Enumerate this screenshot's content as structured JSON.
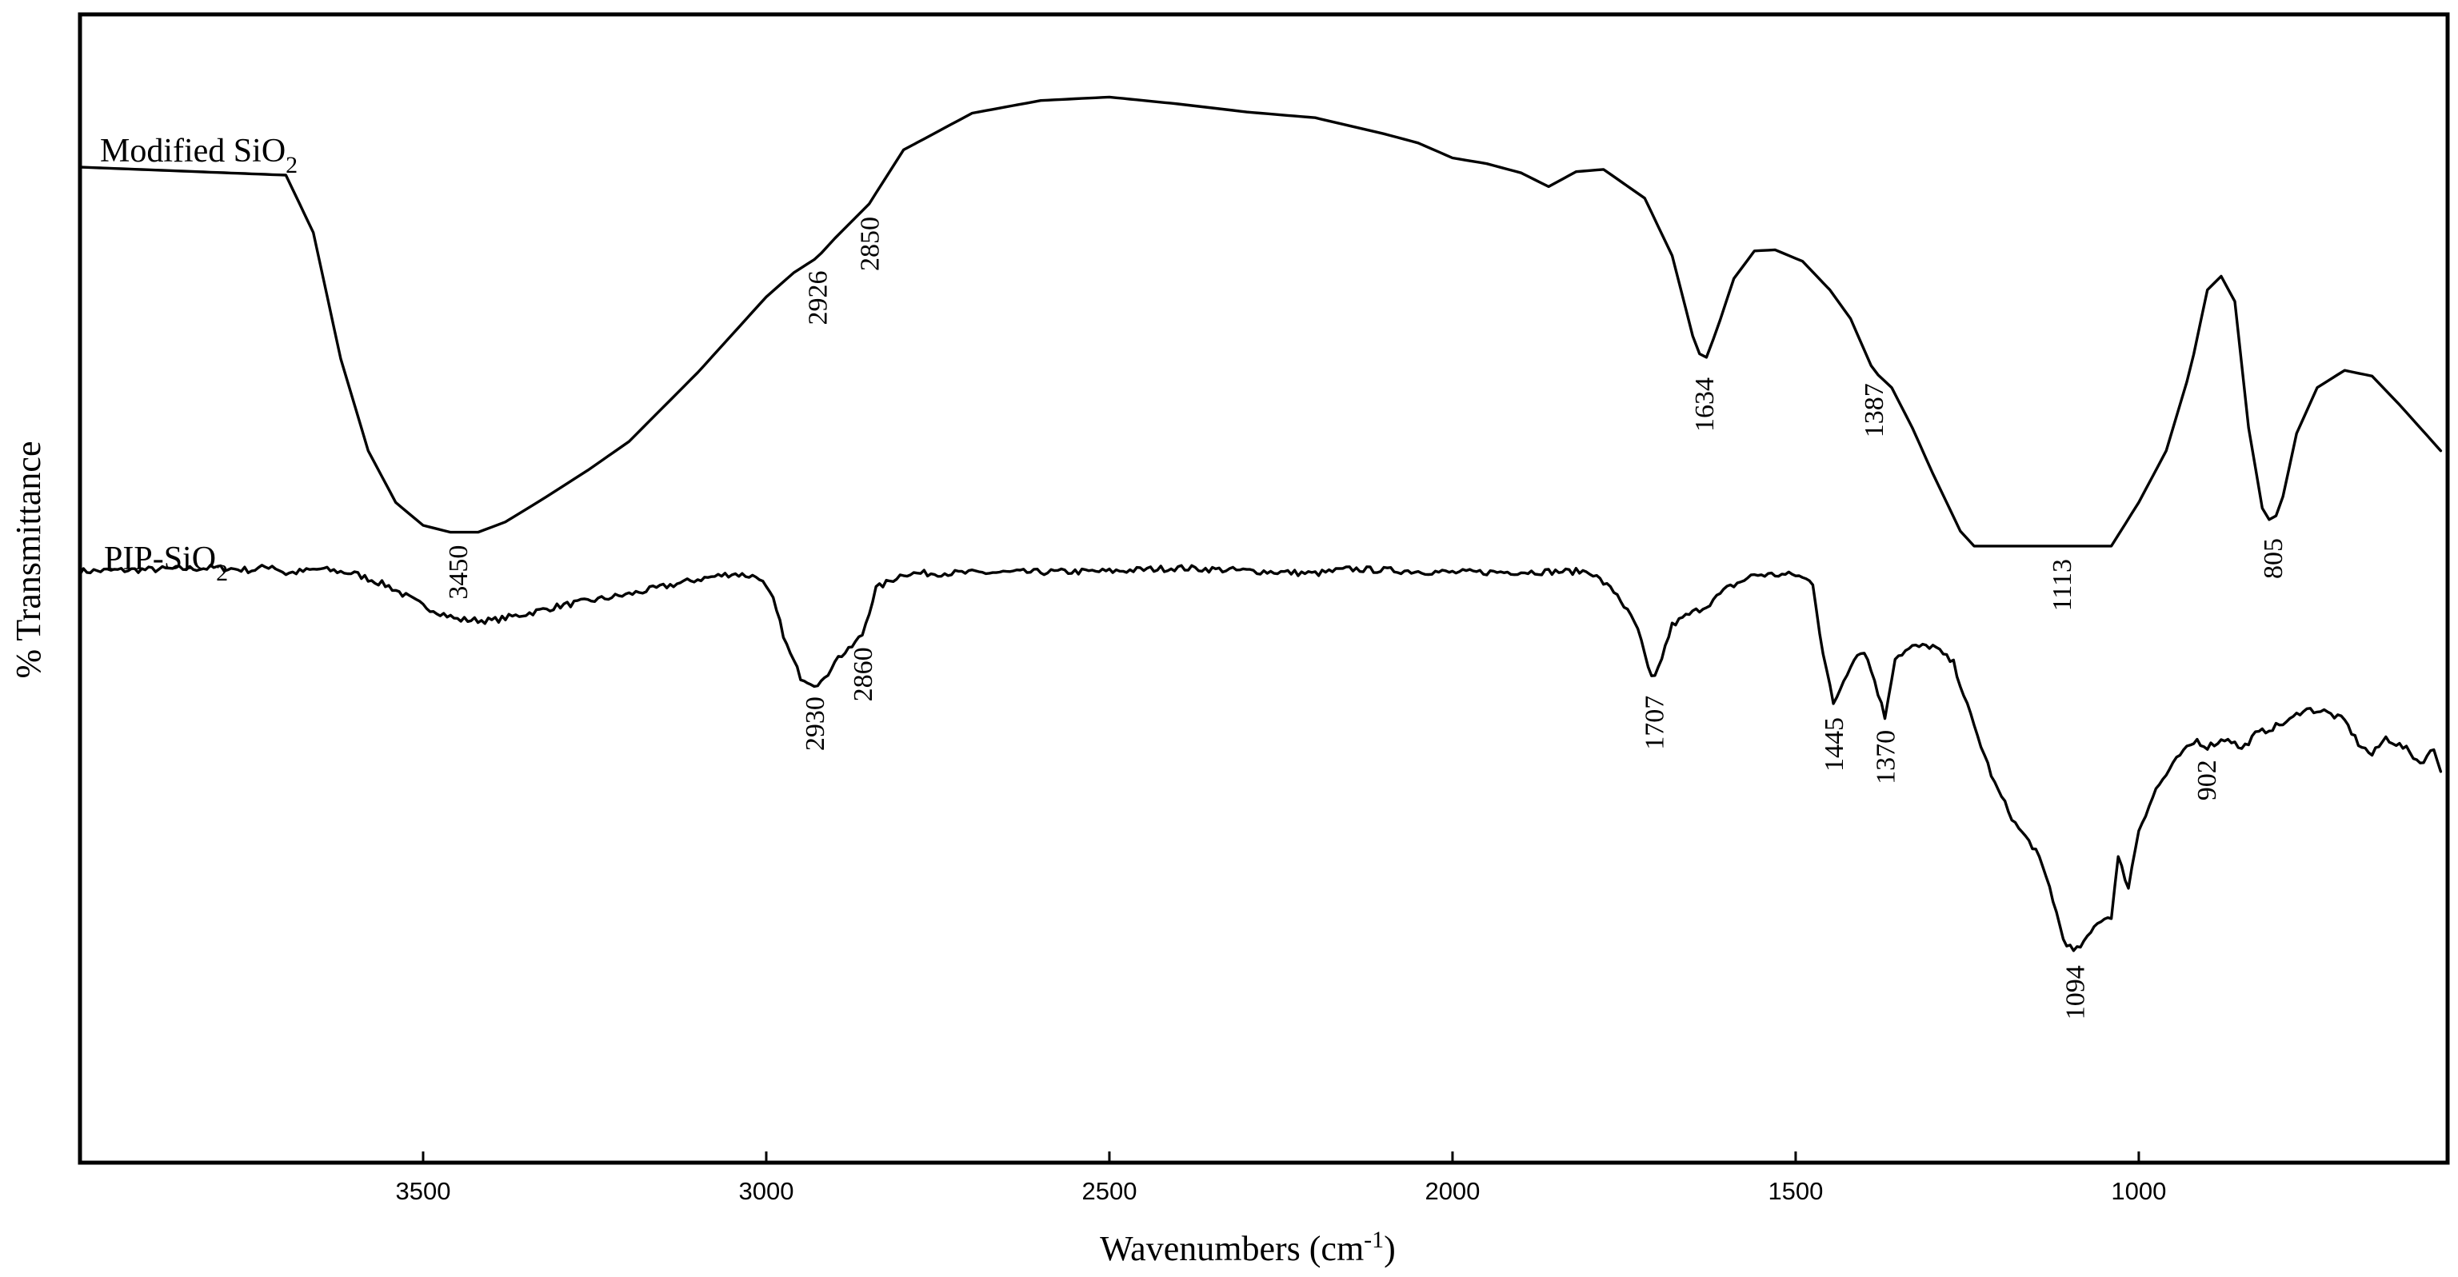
{
  "chart_data": {
    "type": "line",
    "title": "",
    "xlabel": "Wavenumbers (cm-1)",
    "xlabel_main": "Wavenumbers (cm",
    "xlabel_sup": "-1",
    "xlabel_close": ")",
    "ylabel": "% Transmittance",
    "x_reversed": true,
    "xlim": [
      4000,
      550
    ],
    "ylim": [
      0,
      100
    ],
    "grid": false,
    "x_ticks": [
      3500,
      3000,
      2500,
      2000,
      1500,
      1000
    ],
    "series": [
      {
        "name": "Modified SiO2",
        "name_main": "Modified SiO",
        "name_sub": "2",
        "points": [
          [
            4000,
            86.7
          ],
          [
            3700,
            86.0
          ],
          [
            3660,
            81.0
          ],
          [
            3620,
            70.0
          ],
          [
            3580,
            62.0
          ],
          [
            3540,
            57.5
          ],
          [
            3500,
            55.5
          ],
          [
            3460,
            54.9
          ],
          [
            3420,
            54.9
          ],
          [
            3380,
            55.8
          ],
          [
            3320,
            58.0
          ],
          [
            3260,
            60.3
          ],
          [
            3200,
            62.8
          ],
          [
            3100,
            68.8
          ],
          [
            3000,
            75.4
          ],
          [
            2960,
            77.5
          ],
          [
            2926,
            78.8
          ],
          [
            2900,
            80.5
          ],
          [
            2870,
            82.3
          ],
          [
            2850,
            83.5
          ],
          [
            2800,
            88.2
          ],
          [
            2700,
            91.4
          ],
          [
            2600,
            92.5
          ],
          [
            2500,
            92.8
          ],
          [
            2400,
            92.2
          ],
          [
            2300,
            91.5
          ],
          [
            2200,
            91.0
          ],
          [
            2100,
            89.6
          ],
          [
            2050,
            88.8
          ],
          [
            2000,
            87.5
          ],
          [
            1950,
            87.0
          ],
          [
            1900,
            86.2
          ],
          [
            1860,
            85.0
          ],
          [
            1820,
            86.3
          ],
          [
            1780,
            86.5
          ],
          [
            1720,
            84.0
          ],
          [
            1680,
            79.0
          ],
          [
            1650,
            72.0
          ],
          [
            1634,
            69.5
          ],
          [
            1615,
            72.5
          ],
          [
            1590,
            77.0
          ],
          [
            1560,
            79.4
          ],
          [
            1530,
            79.5
          ],
          [
            1490,
            78.5
          ],
          [
            1450,
            76.0
          ],
          [
            1420,
            73.5
          ],
          [
            1387,
            69.0
          ],
          [
            1360,
            67.5
          ],
          [
            1330,
            64.0
          ],
          [
            1300,
            60.0
          ],
          [
            1260,
            55.0
          ],
          [
            1240,
            53.7
          ],
          [
            1113,
            53.7
          ],
          [
            1040,
            53.7
          ],
          [
            1000,
            57.5
          ],
          [
            960,
            62.0
          ],
          [
            925,
            69.0
          ],
          [
            900,
            76.0
          ],
          [
            880,
            77.2
          ],
          [
            860,
            75.0
          ],
          [
            840,
            64.0
          ],
          [
            820,
            57.0
          ],
          [
            805,
            55.5
          ],
          [
            790,
            58.0
          ],
          [
            770,
            63.5
          ],
          [
            740,
            67.5
          ],
          [
            700,
            69.0
          ],
          [
            660,
            68.5
          ],
          [
            620,
            66.0
          ],
          [
            560,
            62.0
          ]
        ]
      },
      {
        "name": "PIP-SiO2",
        "name_main": "PIP-SiO",
        "name_sub": "2",
        "points": [
          [
            4000,
            51.5
          ],
          [
            3800,
            51.8
          ],
          [
            3750,
            51.6
          ],
          [
            3720,
            52.0
          ],
          [
            3700,
            51.3
          ],
          [
            3650,
            51.7
          ],
          [
            3600,
            51.3
          ],
          [
            3550,
            50.2
          ],
          [
            3500,
            48.5
          ],
          [
            3450,
            47.3
          ],
          [
            3400,
            47.2
          ],
          [
            3350,
            47.8
          ],
          [
            3300,
            48.5
          ],
          [
            3200,
            49.5
          ],
          [
            3100,
            50.8
          ],
          [
            3050,
            51.3
          ],
          [
            3010,
            51.0
          ],
          [
            2990,
            49.0
          ],
          [
            2970,
            45.0
          ],
          [
            2950,
            42.3
          ],
          [
            2930,
            41.7
          ],
          [
            2915,
            42.0
          ],
          [
            2900,
            43.8
          ],
          [
            2880,
            44.6
          ],
          [
            2860,
            46.0
          ],
          [
            2840,
            50.0
          ],
          [
            2800,
            51.3
          ],
          [
            2500,
            51.5
          ],
          [
            2400,
            51.8
          ],
          [
            2200,
            51.3
          ],
          [
            2150,
            51.7
          ],
          [
            2000,
            51.4
          ],
          [
            1800,
            51.5
          ],
          [
            1760,
            49.5
          ],
          [
            1730,
            46.5
          ],
          [
            1715,
            43.0
          ],
          [
            1707,
            41.8
          ],
          [
            1695,
            44.0
          ],
          [
            1680,
            46.8
          ],
          [
            1660,
            47.6
          ],
          [
            1630,
            48.5
          ],
          [
            1600,
            50.0
          ],
          [
            1560,
            51.2
          ],
          [
            1500,
            51.2
          ],
          [
            1475,
            50.5
          ],
          [
            1462,
            45.0
          ],
          [
            1445,
            39.9
          ],
          [
            1430,
            42.0
          ],
          [
            1415,
            44.0
          ],
          [
            1400,
            44.6
          ],
          [
            1385,
            42.0
          ],
          [
            1370,
            38.8
          ],
          [
            1355,
            44.0
          ],
          [
            1330,
            44.9
          ],
          [
            1300,
            45.0
          ],
          [
            1270,
            43.5
          ],
          [
            1240,
            38.0
          ],
          [
            1210,
            33.0
          ],
          [
            1180,
            29.5
          ],
          [
            1150,
            27.2
          ],
          [
            1130,
            24.0
          ],
          [
            1110,
            19.5
          ],
          [
            1094,
            18.3
          ],
          [
            1075,
            19.5
          ],
          [
            1060,
            21.0
          ],
          [
            1040,
            21.5
          ],
          [
            1030,
            26.5
          ],
          [
            1015,
            24.0
          ],
          [
            1000,
            29.0
          ],
          [
            975,
            32.5
          ],
          [
            940,
            35.5
          ],
          [
            915,
            36.8
          ],
          [
            902,
            36.2
          ],
          [
            890,
            36.5
          ],
          [
            870,
            37.0
          ],
          [
            850,
            36.0
          ],
          [
            830,
            37.3
          ],
          [
            800,
            38.0
          ],
          [
            780,
            38.5
          ],
          [
            760,
            39.5
          ],
          [
            730,
            39.3
          ],
          [
            700,
            38.5
          ],
          [
            680,
            36.5
          ],
          [
            660,
            35.5
          ],
          [
            640,
            37.0
          ],
          [
            610,
            36.0
          ],
          [
            590,
            34.8
          ],
          [
            570,
            36.0
          ],
          [
            560,
            34.3
          ]
        ]
      }
    ],
    "annotations": [
      {
        "series": "Modified SiO2",
        "x": 3450,
        "label": "3450"
      },
      {
        "series": "Modified SiO2",
        "x": 2926,
        "label": "2926"
      },
      {
        "series": "Modified SiO2",
        "x": 2850,
        "label": "2850"
      },
      {
        "series": "Modified SiO2",
        "x": 1634,
        "label": "1634"
      },
      {
        "series": "Modified SiO2",
        "x": 1387,
        "label": "1387"
      },
      {
        "series": "Modified SiO2",
        "x": 1113,
        "label": "1113"
      },
      {
        "series": "Modified SiO2",
        "x": 805,
        "label": "805"
      },
      {
        "series": "PIP-SiO2",
        "x": 2930,
        "label": "2930"
      },
      {
        "series": "PIP-SiO2",
        "x": 2860,
        "label": "2860"
      },
      {
        "series": "PIP-SiO2",
        "x": 1707,
        "label": "1707"
      },
      {
        "series": "PIP-SiO2",
        "x": 1445,
        "label": "1445"
      },
      {
        "series": "PIP-SiO2",
        "x": 1370,
        "label": "1370"
      },
      {
        "series": "PIP-SiO2",
        "x": 1094,
        "label": "1094"
      },
      {
        "series": "PIP-SiO2",
        "x": 902,
        "label": "902"
      }
    ]
  }
}
